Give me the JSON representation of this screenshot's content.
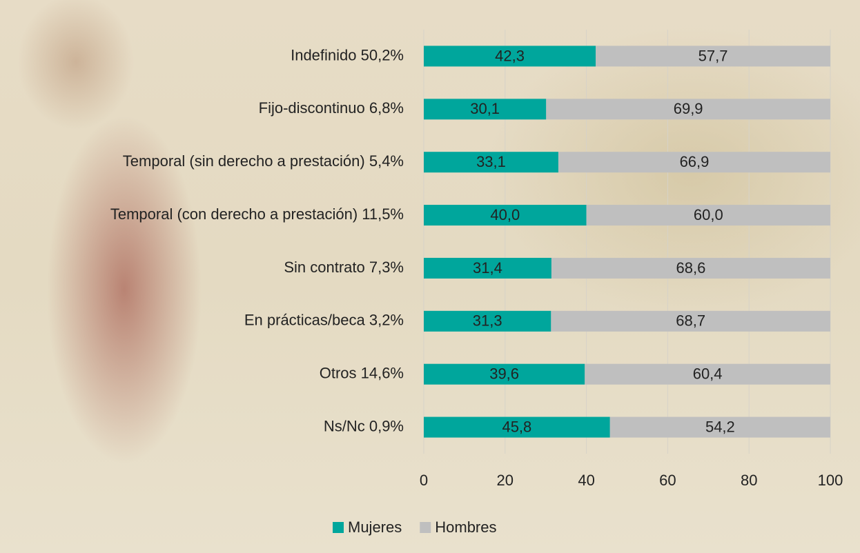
{
  "chart_data": {
    "type": "stacked-bar-horizontal",
    "categories": [
      "Indefinido 50,2%",
      "Fijo-discontinuo 6,8%",
      "Temporal (sin derecho a prestación) 5,4%",
      "Temporal (con derecho a prestación) 11,5%",
      "Sin contrato 7,3%",
      "En prácticas/beca 3,2%",
      "Otros 14,6%",
      "Ns/Nc 0,9%"
    ],
    "series": [
      {
        "name": "Mujeres",
        "color": "#00a69c",
        "values": [
          42.3,
          30.1,
          33.1,
          40.0,
          31.4,
          31.3,
          39.6,
          45.8
        ],
        "value_labels": [
          "42,3",
          "30,1",
          "33,1",
          "40,0",
          "31,4",
          "31,3",
          "39,6",
          "45,8"
        ]
      },
      {
        "name": "Hombres",
        "color": "#bfbfbf",
        "values": [
          57.7,
          69.9,
          66.9,
          60.0,
          68.6,
          68.7,
          60.4,
          54.2
        ],
        "value_labels": [
          "57,7",
          "69,9",
          "66,9",
          "60,0",
          "68,6",
          "68,7",
          "60,4",
          "54,2"
        ]
      }
    ],
    "xlim": [
      0,
      100
    ],
    "xticks": [
      0,
      20,
      40,
      60,
      80,
      100
    ],
    "grid": true,
    "legend": "bottom"
  }
}
